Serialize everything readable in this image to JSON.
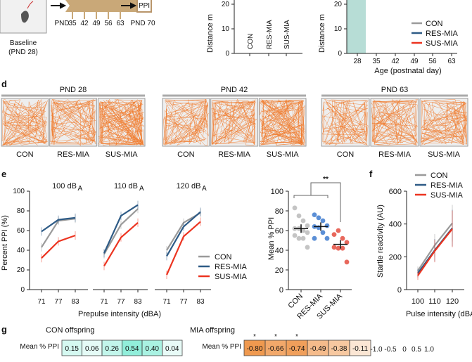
{
  "panel_a": {
    "baseline": "Baseline",
    "baseline_pnd": "(PND 28)",
    "pnd_prefix": "PND",
    "test_days": [
      "35",
      "42",
      "49",
      "56",
      "63"
    ],
    "ppi_box": "PPI",
    "ppi_day": "PND 70",
    "colors": {
      "timeline": "#c9a878",
      "ppi_box": "#b8956a"
    }
  },
  "panel_b": {
    "ylabel": "Distance m",
    "yticks": [
      "0",
      "10",
      "20"
    ],
    "categories": [
      "CON",
      "RES-MIA",
      "SUS-MIA"
    ]
  },
  "panel_c": {
    "ylabel": "Distance m",
    "yticks": [
      "0",
      "10",
      "20"
    ],
    "xticks": [
      "28",
      "35",
      "42",
      "49",
      "56",
      "63"
    ],
    "xlabel": "Age (postnatal day)",
    "legend": [
      "CON",
      "RES-MIA",
      "SUS-MIA"
    ],
    "highlight_color": "#b7ddd6"
  },
  "panel_d": {
    "label": "d",
    "groups": [
      {
        "title": "PND 28",
        "labels": [
          "CON",
          "RES-MIA",
          "SUS-MIA"
        ]
      },
      {
        "title": "PND 42",
        "labels": [
          "CON",
          "RES-MIA",
          "SUS-MIA"
        ]
      },
      {
        "title": "PND 63",
        "labels": [
          "CON",
          "RES-MIA",
          "SUS-MIA"
        ]
      }
    ],
    "track_color": "#f07a2c"
  },
  "colors": {
    "CON": "#9a9a9a",
    "RES-MIA": "#2e5b86",
    "SUS-MIA": "#ec3420"
  },
  "chart_data": [
    {
      "type": "line",
      "panel": "e",
      "ylabel": "Percent PPI (%)",
      "xlabel": "Prepulse intensity (dBA)",
      "ylim": [
        0,
        100
      ],
      "yticks": [
        "0",
        "20",
        "40",
        "60",
        "80",
        "100"
      ],
      "x": [
        "71",
        "77",
        "83"
      ],
      "subplots": [
        {
          "title": "100 dB",
          "title_sub": "A",
          "series": [
            {
              "name": "CON",
              "values": [
                43,
                70,
                72
              ]
            },
            {
              "name": "RES-MIA",
              "values": [
                59,
                71,
                73
              ]
            },
            {
              "name": "SUS-MIA",
              "values": [
                32,
                49,
                55
              ]
            }
          ]
        },
        {
          "title": "110 dB",
          "title_sub": "A",
          "series": [
            {
              "name": "CON",
              "values": [
                36,
                66,
                82
              ]
            },
            {
              "name": "RES-MIA",
              "values": [
                37,
                75,
                86
              ]
            },
            {
              "name": "SUS-MIA",
              "values": [
                24,
                53,
                68
              ]
            }
          ]
        },
        {
          "title": "120 dB",
          "title_sub": "A",
          "series": [
            {
              "name": "CON",
              "values": [
                40,
                68,
                78
              ]
            },
            {
              "name": "RES-MIA",
              "values": [
                34,
                64,
                79
              ]
            },
            {
              "name": "SUS-MIA",
              "values": [
                15,
                54,
                69
              ]
            }
          ]
        }
      ],
      "legend": [
        "CON",
        "RES-MIA",
        "SUS-MIA"
      ],
      "label": "e"
    },
    {
      "type": "scatter",
      "panel": "e-mean",
      "ylabel": "Mean % PPI",
      "ylim": [
        0,
        100
      ],
      "yticks": [
        "0",
        "20",
        "40",
        "60",
        "80",
        "100"
      ],
      "categories": [
        "CON",
        "RES-MIA",
        "SUS-MIA"
      ],
      "points": [
        [
          83,
          75,
          70,
          65,
          62,
          62,
          60,
          58,
          55,
          52,
          52,
          43
        ],
        [
          76,
          73,
          70,
          65,
          64,
          63,
          58,
          52,
          52
        ],
        [
          56,
          60,
          52,
          48,
          43,
          42,
          42,
          28
        ]
      ],
      "means": [
        62,
        64,
        46
      ],
      "significance": "**",
      "point_colors": [
        "#c4c4c4",
        "#5b8fd6",
        "#e8685c"
      ]
    },
    {
      "type": "line",
      "panel": "f",
      "label": "f",
      "ylabel": "Startle reactivity (AU)",
      "xlabel": "Pulse intensity (dBA)",
      "ylim": [
        0,
        600
      ],
      "yticks": [
        "0",
        "200",
        "400",
        "600"
      ],
      "x": [
        "100",
        "110",
        "120"
      ],
      "series": [
        {
          "name": "CON",
          "values": [
            115,
            270,
            405
          ]
        },
        {
          "name": "RES-MIA",
          "values": [
            100,
            240,
            375
          ]
        },
        {
          "name": "SUS-MIA",
          "values": [
            85,
            235,
            370
          ]
        }
      ],
      "legend": [
        "CON",
        "RES-MIA",
        "SUS-MIA"
      ]
    },
    {
      "type": "heatmap",
      "panel": "g",
      "label": "g",
      "row_label": "Mean % PPI",
      "groups": [
        {
          "title": "CON offspring",
          "values": [
            0.15,
            0.06,
            0.26,
            0.54,
            0.4,
            0.04
          ],
          "labels": [
            "0.15",
            "0.06",
            "0.26",
            "0.54",
            "0.40",
            "0.04"
          ],
          "stars": [
            "",
            "",
            "",
            "",
            "",
            ""
          ]
        },
        {
          "title": "MIA offspring",
          "values": [
            -0.8,
            -0.66,
            -0.74,
            -0.49,
            -0.38,
            -0.11
          ],
          "labels": [
            "-0.80",
            "-0.66",
            "-0.74",
            "-0.49",
            "-0.38",
            "-0.11"
          ],
          "stars": [
            "*",
            "*",
            "*",
            "",
            "",
            ""
          ]
        }
      ],
      "scale_ticks": [
        "-1.0",
        "-0.5",
        "0",
        "0.5",
        "1.0"
      ],
      "scale_colors": {
        "negative": "#ec8a2c",
        "positive": "#3fe0c0"
      }
    }
  ]
}
